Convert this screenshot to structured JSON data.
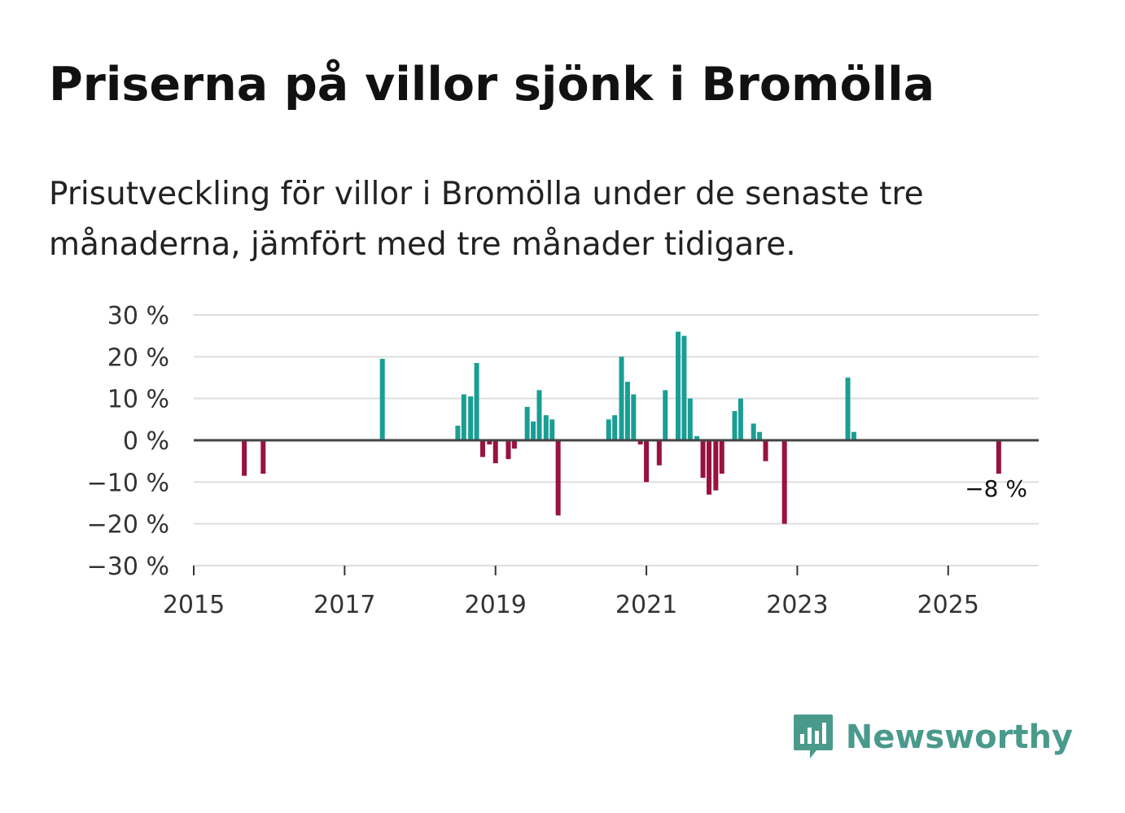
{
  "header": {
    "title": "Priserna på villor sjönk i Bromölla",
    "subtitle": "Prisutveckling för villor i Bromölla under de senaste tre månaderna, jämfört med tre månader tidigare."
  },
  "chart_data": {
    "type": "bar",
    "title": "Priserna på villor sjönk i Bromölla",
    "subtitle": "Prisutveckling för villor i Bromölla under de senaste tre månaderna, jämfört med tre månader tidigare.",
    "xlabel": "",
    "ylabel": "",
    "unit": "%",
    "xlim": [
      2015.0,
      2026.2
    ],
    "ylim": [
      -30,
      30
    ],
    "y_ticks": [
      30,
      20,
      10,
      0,
      -10,
      -20,
      -30
    ],
    "y_tick_labels": [
      "30 %",
      "20 %",
      "10 %",
      "0 %",
      "−10 %",
      "−20 %",
      "−30 %"
    ],
    "x_ticks": [
      2015,
      2017,
      2019,
      2021,
      2023,
      2025
    ],
    "x_tick_labels": [
      "2015",
      "2017",
      "2019",
      "2021",
      "2023",
      "2025"
    ],
    "grid": true,
    "positive_color": "#1a9e94",
    "negative_color": "#98123f",
    "last_value_label": "−8 %",
    "points": [
      {
        "x": 2015.67,
        "value": -8.5
      },
      {
        "x": 2015.92,
        "value": -8
      },
      {
        "x": 2017.5,
        "value": 19.5
      },
      {
        "x": 2018.5,
        "value": 3.5
      },
      {
        "x": 2018.58,
        "value": 11
      },
      {
        "x": 2018.67,
        "value": 10.5
      },
      {
        "x": 2018.75,
        "value": 18.5
      },
      {
        "x": 2018.83,
        "value": -4
      },
      {
        "x": 2018.92,
        "value": -1
      },
      {
        "x": 2019.0,
        "value": -5.5
      },
      {
        "x": 2019.17,
        "value": -4.5
      },
      {
        "x": 2019.25,
        "value": -2
      },
      {
        "x": 2019.42,
        "value": 8
      },
      {
        "x": 2019.5,
        "value": 4.5
      },
      {
        "x": 2019.58,
        "value": 12
      },
      {
        "x": 2019.67,
        "value": 6
      },
      {
        "x": 2019.75,
        "value": 5
      },
      {
        "x": 2019.83,
        "value": -18
      },
      {
        "x": 2020.5,
        "value": 5
      },
      {
        "x": 2020.58,
        "value": 6
      },
      {
        "x": 2020.67,
        "value": 20
      },
      {
        "x": 2020.75,
        "value": 14
      },
      {
        "x": 2020.83,
        "value": 11
      },
      {
        "x": 2020.92,
        "value": -1
      },
      {
        "x": 2021.0,
        "value": -10
      },
      {
        "x": 2021.17,
        "value": -6
      },
      {
        "x": 2021.25,
        "value": 12
      },
      {
        "x": 2021.42,
        "value": 26
      },
      {
        "x": 2021.5,
        "value": 25
      },
      {
        "x": 2021.58,
        "value": 10
      },
      {
        "x": 2021.67,
        "value": 1
      },
      {
        "x": 2021.75,
        "value": -9
      },
      {
        "x": 2021.83,
        "value": -13
      },
      {
        "x": 2021.92,
        "value": -12
      },
      {
        "x": 2022.0,
        "value": -8
      },
      {
        "x": 2022.17,
        "value": 7
      },
      {
        "x": 2022.25,
        "value": 10
      },
      {
        "x": 2022.42,
        "value": 4
      },
      {
        "x": 2022.5,
        "value": 2
      },
      {
        "x": 2022.58,
        "value": -5
      },
      {
        "x": 2022.83,
        "value": -20
      },
      {
        "x": 2023.67,
        "value": 15
      },
      {
        "x": 2023.75,
        "value": 2
      },
      {
        "x": 2025.67,
        "value": -8
      }
    ]
  },
  "footer": {
    "brand_name": "Newsworthy",
    "brand_icon": "newsworthy-logo-icon"
  }
}
